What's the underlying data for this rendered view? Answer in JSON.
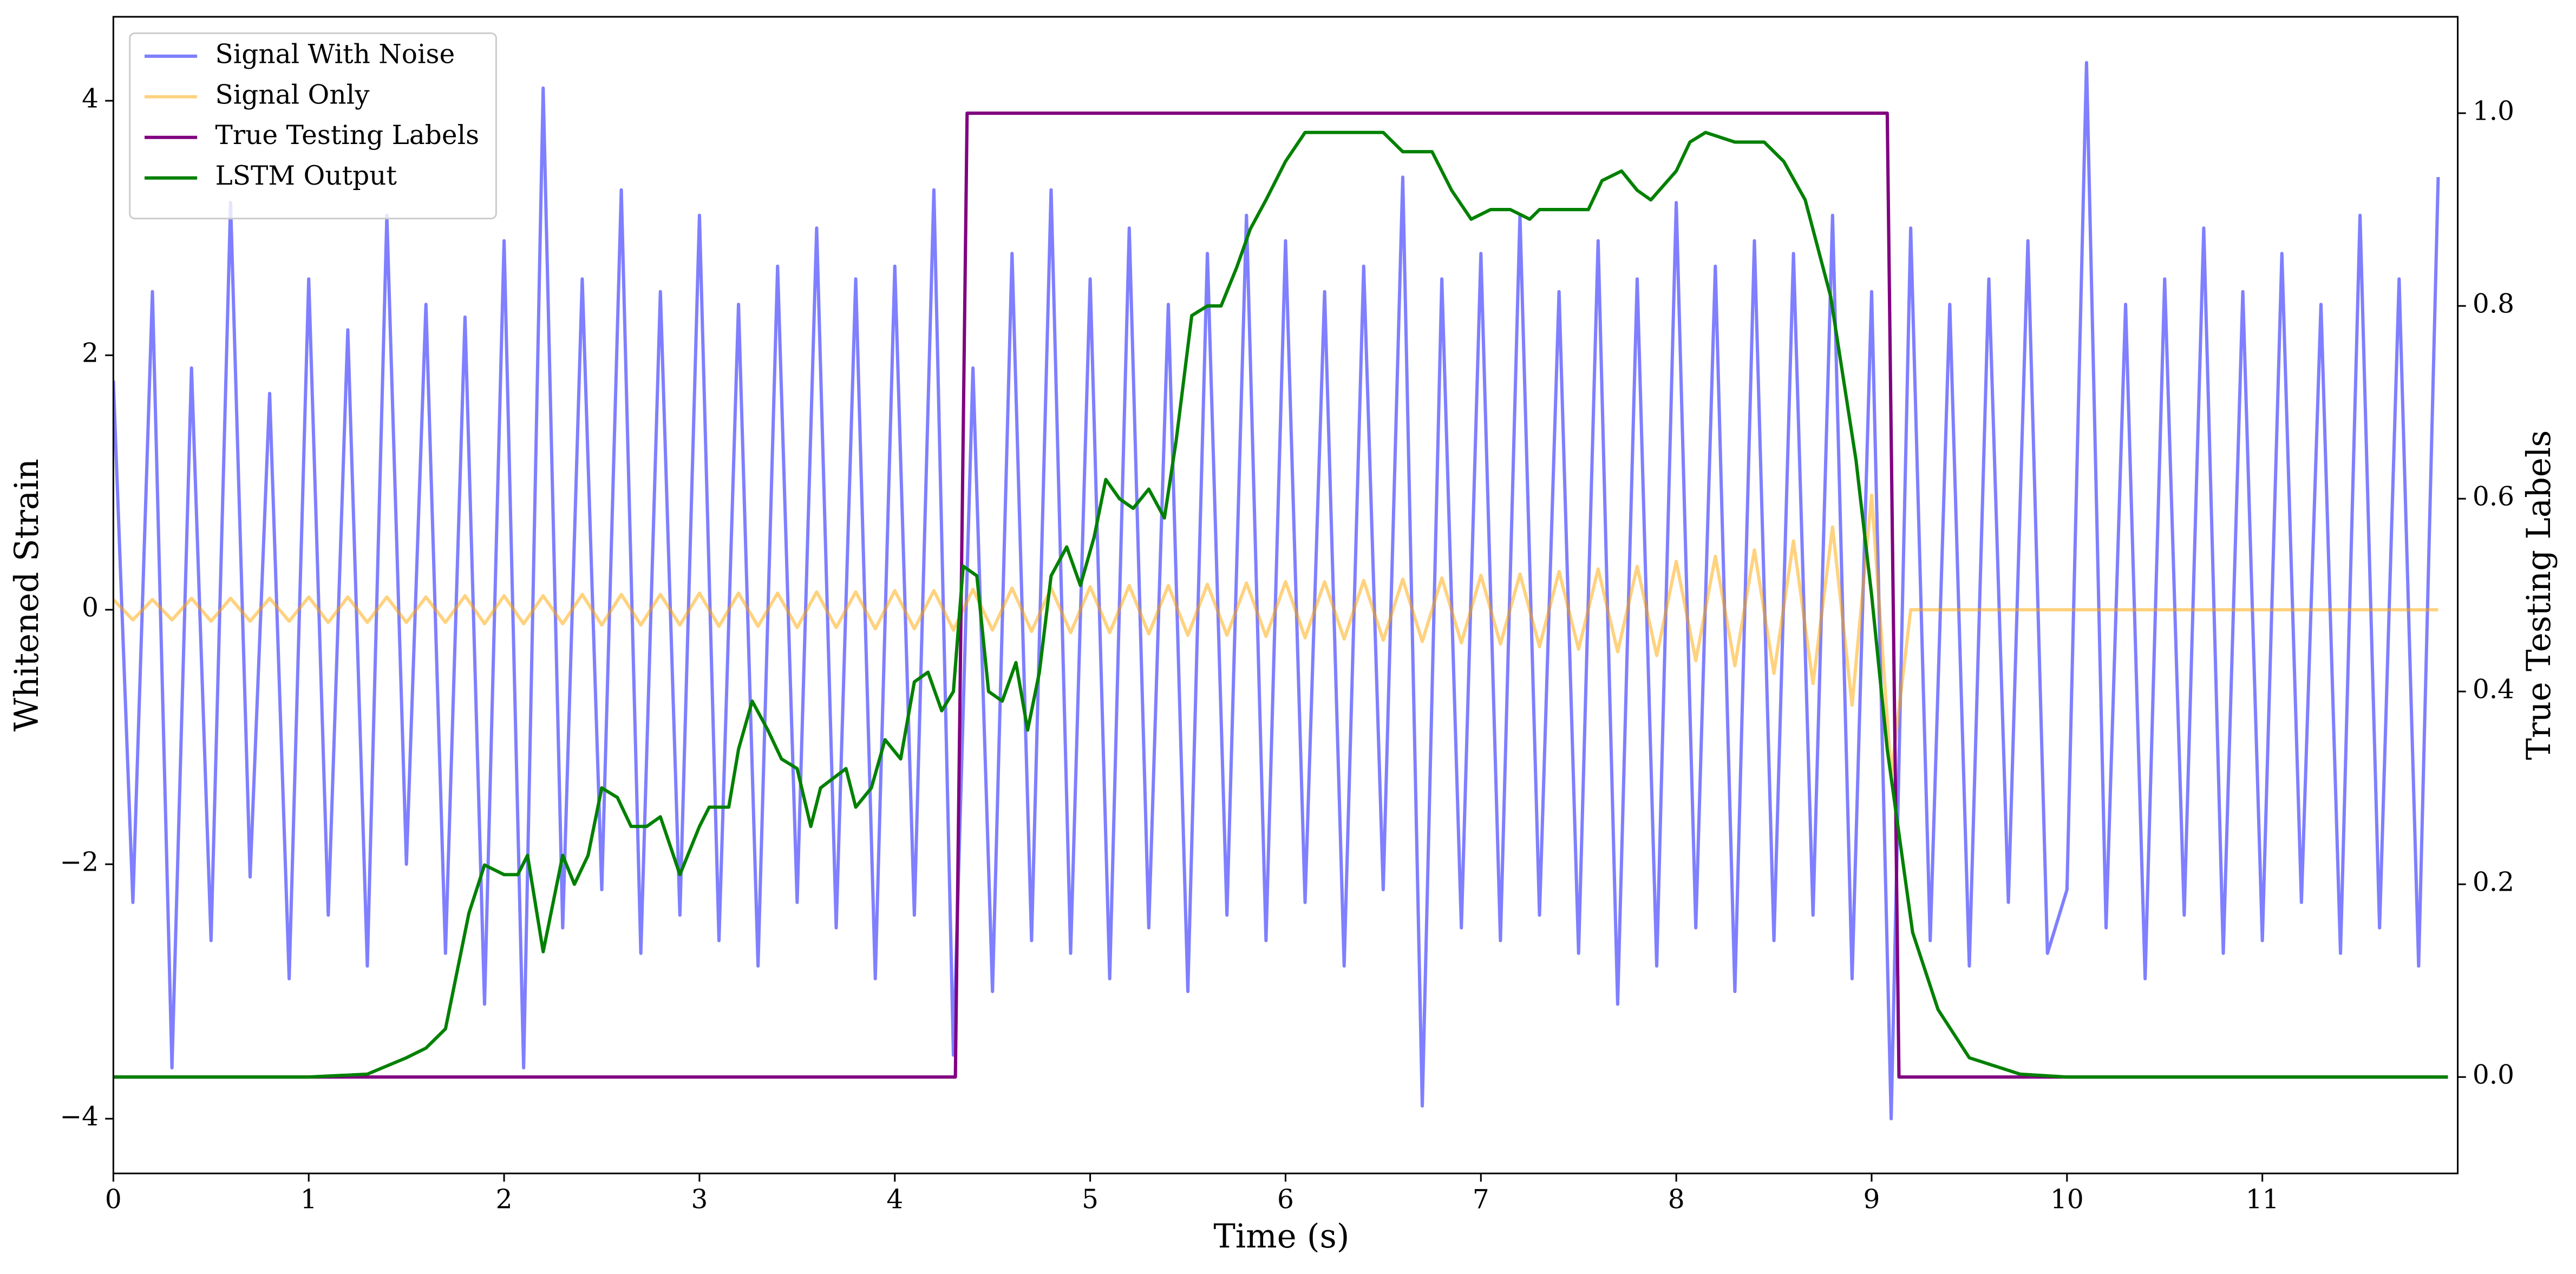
{
  "chart_data": {
    "type": "line",
    "xlabel": "Time (s)",
    "ylabel": "Whitened Strain",
    "y2label": "True Testing Labels",
    "xlim": [
      0,
      12
    ],
    "ylim": [
      -4.43,
      4.66
    ],
    "y2lim": [
      -0.1,
      1.1
    ],
    "xticks": [
      0,
      1,
      2,
      3,
      4,
      5,
      6,
      7,
      8,
      9,
      10,
      11
    ],
    "yticks": [
      {
        "value": -4,
        "label": "−4"
      },
      {
        "value": -2,
        "label": "−2"
      },
      0,
      2,
      4
    ],
    "y2ticks": [
      {
        "value": 0,
        "label": "0.0"
      },
      0.2,
      0.4,
      0.6,
      0.8,
      {
        "value": 1,
        "label": "1.0"
      }
    ],
    "legend": "upper left",
    "grid": false,
    "x": [
      0,
      0.1,
      0.2,
      0.3,
      0.4,
      0.5,
      0.6,
      0.7,
      0.8,
      0.9,
      1,
      1.1,
      1.2,
      1.3,
      1.4,
      1.5,
      1.6,
      1.7,
      1.8,
      1.9,
      2,
      2.1,
      2.2,
      2.3,
      2.4,
      2.5,
      2.6,
      2.7,
      2.8,
      2.9,
      3,
      3.1,
      3.2,
      3.3,
      3.4,
      3.5,
      3.6,
      3.7,
      3.8,
      3.9,
      4,
      4.1,
      4.2,
      4.3,
      4.4,
      4.5,
      4.6,
      4.7,
      4.8,
      4.9,
      5,
      5.1,
      5.2,
      5.3,
      5.4,
      5.5,
      5.6,
      5.7,
      5.8,
      5.9,
      6,
      6.1,
      6.2,
      6.3,
      6.4,
      6.5,
      6.6,
      6.7,
      6.8,
      6.9,
      7,
      7.1,
      7.2,
      7.3,
      7.4,
      7.5,
      7.6,
      7.7,
      7.8,
      7.9,
      8,
      8.1,
      8.2,
      8.3,
      8.4,
      8.5,
      8.6,
      8.7,
      8.8,
      8.9,
      9,
      9.1,
      9.2,
      9.3,
      9.4,
      9.5,
      9.6,
      9.7,
      9.8,
      9.9,
      10,
      10.1,
      10.2,
      10.3,
      10.4,
      10.5,
      10.6,
      10.7,
      10.8,
      10.9,
      11,
      11.1,
      11.2,
      11.3,
      11.4,
      11.5,
      11.6,
      11.7,
      11.8,
      11.9
    ],
    "series": [
      {
        "name": "Signal With Noise",
        "color": "blue",
        "alpha": 0.5,
        "axis": "y",
        "values": [
          1.8,
          -2.3,
          2.5,
          -3.6,
          1.9,
          -2.6,
          3.2,
          -2.1,
          1.7,
          -2.9,
          2.6,
          -2.4,
          2.2,
          -2.8,
          3.1,
          -2.0,
          2.4,
          -2.7,
          2.3,
          -3.1,
          2.9,
          -3.6,
          4.1,
          -2.5,
          2.6,
          -2.2,
          3.3,
          -2.7,
          2.5,
          -2.4,
          3.1,
          -2.6,
          2.4,
          -2.8,
          2.7,
          -2.3,
          3.0,
          -2.5,
          2.6,
          -2.9,
          2.7,
          -2.4,
          3.3,
          -3.5,
          1.9,
          -3.0,
          2.8,
          -2.6,
          3.3,
          -2.7,
          2.6,
          -2.9,
          3.0,
          -2.5,
          2.4,
          -3.0,
          2.8,
          -2.4,
          3.1,
          -2.6,
          2.9,
          -2.3,
          2.5,
          -2.8,
          2.7,
          -2.2,
          3.4,
          -3.9,
          2.6,
          -2.5,
          2.8,
          -2.6,
          3.1,
          -2.4,
          2.5,
          -2.7,
          2.9,
          -3.1,
          2.6,
          -2.8,
          3.2,
          -2.5,
          2.7,
          -3.0,
          2.9,
          -2.6,
          2.8,
          -2.4,
          3.1,
          -2.9,
          2.5,
          -4.0,
          3.0,
          -2.6,
          2.4,
          -2.8,
          2.6,
          -2.3,
          2.9,
          -2.7,
          -2.2,
          4.3,
          -2.5,
          2.4,
          -2.9,
          2.6,
          -2.4,
          3.0,
          -2.7,
          2.5,
          -2.6,
          2.8,
          -2.3,
          2.4,
          -2.7,
          3.1,
          -2.5,
          2.6,
          -2.8,
          3.4
        ]
      },
      {
        "name": "Signal Only",
        "color": "orange",
        "alpha": 0.5,
        "axis": "y",
        "values": [
          0.08,
          -0.08,
          0.08,
          -0.08,
          0.09,
          -0.09,
          0.09,
          -0.09,
          0.09,
          -0.09,
          0.1,
          -0.1,
          0.1,
          -0.1,
          0.1,
          -0.1,
          0.1,
          -0.1,
          0.11,
          -0.11,
          0.11,
          -0.11,
          0.11,
          -0.11,
          0.12,
          -0.12,
          0.12,
          -0.12,
          0.12,
          -0.12,
          0.13,
          -0.13,
          0.13,
          -0.13,
          0.13,
          -0.14,
          0.14,
          -0.14,
          0.14,
          -0.15,
          0.15,
          -0.15,
          0.15,
          -0.16,
          0.16,
          -0.16,
          0.17,
          -0.17,
          0.17,
          -0.18,
          0.18,
          -0.18,
          0.19,
          -0.19,
          0.19,
          -0.2,
          0.2,
          -0.2,
          0.21,
          -0.21,
          0.22,
          -0.22,
          0.22,
          -0.23,
          0.23,
          -0.24,
          0.24,
          -0.25,
          0.25,
          -0.26,
          0.27,
          -0.27,
          0.28,
          -0.29,
          0.3,
          -0.31,
          0.32,
          -0.33,
          0.34,
          -0.36,
          0.38,
          -0.4,
          0.42,
          -0.44,
          0.47,
          -0.5,
          0.54,
          -0.58,
          0.65,
          -0.75,
          0.9,
          -1.3,
          0,
          0,
          0,
          0,
          0,
          0,
          0,
          0,
          0,
          0,
          0,
          0,
          0,
          0,
          0,
          0,
          0,
          0,
          0,
          0,
          0,
          0,
          0,
          0,
          0,
          0,
          0,
          0
        ]
      },
      {
        "name": "True Testing Labels",
        "color": "purple",
        "alpha": 1,
        "axis": "y2",
        "x": [
          0,
          4.31,
          4.37,
          9.08,
          9.14,
          11.95
        ],
        "values": [
          0,
          0,
          1,
          1,
          0,
          0
        ]
      },
      {
        "name": "LSTM Output",
        "color": "green",
        "alpha": 1,
        "axis": "y2",
        "x": [
          0,
          1,
          1.3,
          1.5,
          1.6,
          1.7,
          1.82,
          1.9,
          2,
          2.07,
          2.12,
          2.2,
          2.3,
          2.36,
          2.43,
          2.5,
          2.58,
          2.65,
          2.73,
          2.8,
          2.9,
          3,
          3.05,
          3.15,
          3.2,
          3.27,
          3.35,
          3.42,
          3.5,
          3.57,
          3.62,
          3.75,
          3.8,
          3.88,
          3.95,
          4.03,
          4.1,
          4.17,
          4.24,
          4.3,
          4.35,
          4.42,
          4.48,
          4.55,
          4.62,
          4.68,
          4.74,
          4.8,
          4.88,
          4.95,
          5.02,
          5.08,
          5.15,
          5.22,
          5.3,
          5.38,
          5.44,
          5.52,
          5.6,
          5.67,
          5.75,
          5.82,
          5.9,
          6,
          6.1,
          6.2,
          6.35,
          6.5,
          6.6,
          6.75,
          6.85,
          6.95,
          7.05,
          7.15,
          7.25,
          7.3,
          7.45,
          7.55,
          7.62,
          7.72,
          7.8,
          7.87,
          8,
          8.07,
          8.15,
          8.3,
          8.45,
          8.55,
          8.66,
          8.79,
          8.92,
          9,
          9.08,
          9.21,
          9.34,
          9.5,
          9.76,
          10,
          11.95
        ],
        "values": [
          0,
          0,
          0.003,
          0.02,
          0.03,
          0.05,
          0.17,
          0.22,
          0.21,
          0.21,
          0.23,
          0.13,
          0.23,
          0.2,
          0.23,
          0.3,
          0.29,
          0.26,
          0.26,
          0.27,
          0.21,
          0.26,
          0.28,
          0.28,
          0.34,
          0.39,
          0.36,
          0.33,
          0.32,
          0.26,
          0.3,
          0.32,
          0.28,
          0.3,
          0.35,
          0.33,
          0.41,
          0.42,
          0.38,
          0.4,
          0.53,
          0.52,
          0.4,
          0.39,
          0.43,
          0.36,
          0.42,
          0.52,
          0.55,
          0.51,
          0.56,
          0.62,
          0.6,
          0.59,
          0.61,
          0.58,
          0.66,
          0.79,
          0.8,
          0.8,
          0.84,
          0.88,
          0.91,
          0.95,
          0.98,
          0.98,
          0.98,
          0.98,
          0.96,
          0.96,
          0.92,
          0.89,
          0.9,
          0.9,
          0.89,
          0.9,
          0.9,
          0.9,
          0.93,
          0.94,
          0.92,
          0.91,
          0.94,
          0.97,
          0.98,
          0.97,
          0.97,
          0.95,
          0.91,
          0.81,
          0.64,
          0.5,
          0.34,
          0.15,
          0.07,
          0.02,
          0.003,
          0,
          0
        ]
      }
    ]
  }
}
